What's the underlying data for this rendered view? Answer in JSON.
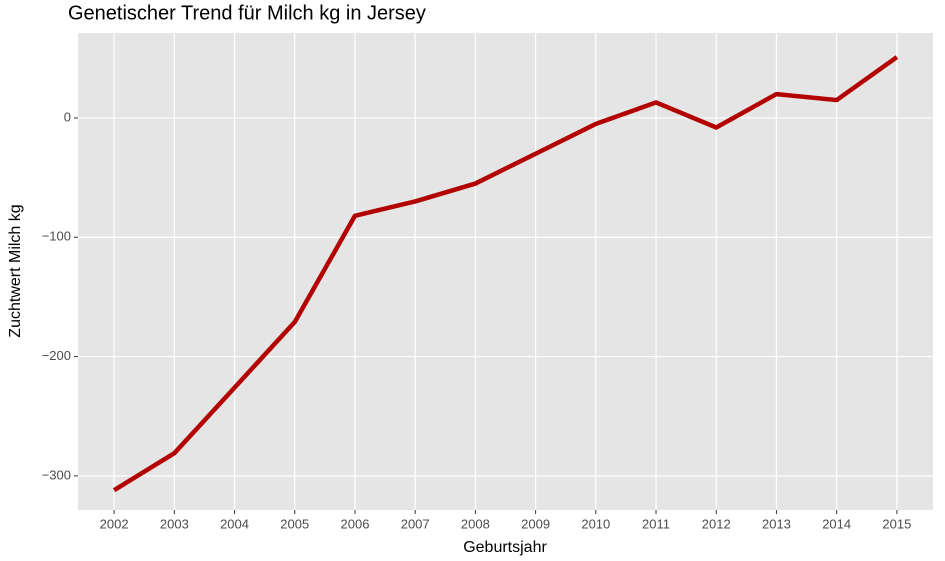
{
  "chart_data": {
    "type": "line",
    "title": "Genetischer Trend für Milch kg in Jersey",
    "xlabel": "Geburtsjahr",
    "ylabel": "Zuchtwert Milch kg",
    "x": [
      2002,
      2003,
      2004,
      2005,
      2006,
      2007,
      2008,
      2009,
      2010,
      2011,
      2012,
      2013,
      2014,
      2015
    ],
    "series": [
      {
        "name": "Zuchtwert",
        "color": "#b30000",
        "values": [
          -312,
          -281,
          -226,
          -171,
          -82,
          -70,
          -55,
          -30,
          -5,
          13,
          -8,
          20,
          15,
          51
        ]
      }
    ],
    "xlim": [
      2001.4,
      2015.6
    ],
    "xticks": [
      2002,
      2003,
      2004,
      2005,
      2006,
      2007,
      2008,
      2009,
      2010,
      2011,
      2012,
      2013,
      2014,
      2015
    ],
    "ylim": [
      -328.6,
      71.2
    ],
    "yticks": [
      {
        "value": -300,
        "label": "−300"
      },
      {
        "value": -200,
        "label": "−200"
      },
      {
        "value": -100,
        "label": "−100"
      },
      0
    ],
    "grid": true
  }
}
